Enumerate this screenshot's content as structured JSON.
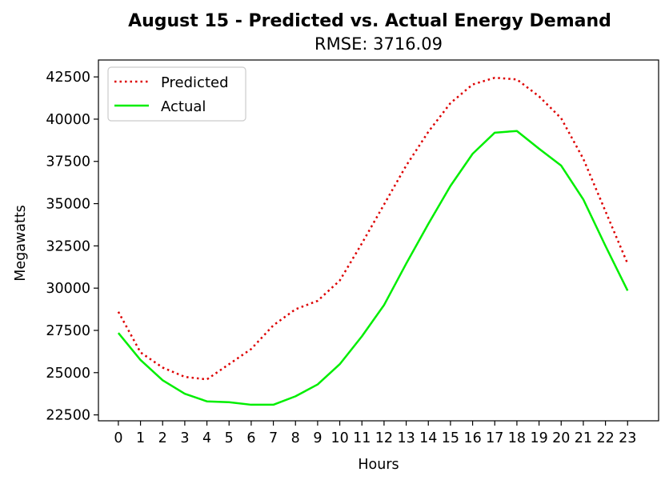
{
  "chart_data": {
    "type": "line",
    "title": "August 15 - Predicted vs. Actual Energy Demand",
    "subtitle": "RMSE: 3716.09",
    "xlabel": "Hours",
    "ylabel": "Megawatts",
    "x": [
      0,
      1,
      2,
      3,
      4,
      5,
      6,
      7,
      8,
      9,
      10,
      11,
      12,
      13,
      14,
      15,
      16,
      17,
      18,
      19,
      20,
      21,
      22,
      23
    ],
    "xticks": [
      "0",
      "1",
      "2",
      "3",
      "4",
      "5",
      "6",
      "7",
      "8",
      "9",
      "10",
      "11",
      "12",
      "13",
      "14",
      "15",
      "16",
      "17",
      "18",
      "19",
      "20",
      "21",
      "22",
      "23"
    ],
    "yticks": [
      "22500",
      "25000",
      "27500",
      "30000",
      "32500",
      "35000",
      "37500",
      "40000",
      "42500"
    ],
    "ytick_values": [
      22500,
      25000,
      27500,
      30000,
      32500,
      35000,
      37500,
      40000,
      42500
    ],
    "xlim": [
      -0.9,
      24.4
    ],
    "ylim": [
      22150,
      43500
    ],
    "grid": false,
    "legend_position": "upper-left",
    "series": [
      {
        "name": "Predicted",
        "color": "#dd0000",
        "style": "dotted",
        "values": [
          28600,
          26200,
          25300,
          24750,
          24600,
          25500,
          26400,
          27800,
          28750,
          29250,
          30450,
          32650,
          34950,
          37250,
          39250,
          40950,
          42050,
          42450,
          42350,
          41350,
          40050,
          37650,
          34550,
          31450
        ]
      },
      {
        "name": "Actual",
        "color": "#00ee00",
        "style": "solid",
        "values": [
          27350,
          25750,
          24550,
          23750,
          23300,
          23250,
          23100,
          23100,
          23600,
          24300,
          25500,
          27150,
          29000,
          31450,
          33800,
          36050,
          37950,
          39200,
          39300,
          38250,
          37250,
          35250,
          32500,
          29850
        ]
      }
    ]
  }
}
